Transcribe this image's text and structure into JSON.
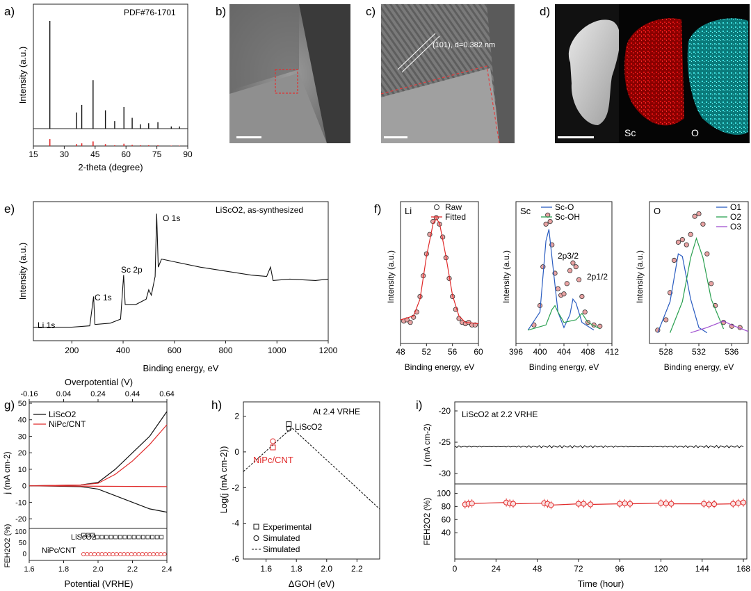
{
  "panel_labels": [
    "a)",
    "b)",
    "c)",
    "d)",
    "e)",
    "f)",
    "g)",
    "h)",
    "i)"
  ],
  "images": {
    "c_annotation": "(101), d=0.382 nm",
    "d_labels": [
      "Sc",
      "O"
    ]
  },
  "chart_data": [
    {
      "id": "a",
      "type": "bar",
      "xlabel": "2-theta (degree)",
      "ylabel": "Intensity (a.u.)",
      "annotation": "PDF#76-1701",
      "xticks": [
        "15",
        "30",
        "45",
        "60",
        "75",
        "90"
      ],
      "xlim": [
        15,
        90
      ],
      "series": [
        {
          "values": [
            [
              23,
              100
            ],
            [
              36,
              15
            ],
            [
              38.5,
              22
            ],
            [
              44,
              45
            ],
            [
              50,
              17
            ],
            [
              54.5,
              7
            ],
            [
              59,
              20
            ],
            [
              63,
              10
            ],
            [
              67,
              4
            ],
            [
              71,
              5
            ],
            [
              75.5,
              6
            ],
            [
              82,
              2
            ],
            [
              86,
              2
            ]
          ]
        },
        {
          "values": [
            [
              23,
              18
            ],
            [
              36,
              5
            ],
            [
              38.5,
              7
            ],
            [
              44,
              12
            ],
            [
              50,
              5
            ],
            [
              54.5,
              2
            ],
            [
              59,
              6
            ],
            [
              63,
              3
            ],
            [
              67,
              2
            ],
            [
              71,
              2
            ],
            [
              75.5,
              2
            ],
            [
              82,
              1
            ],
            [
              86,
              1
            ]
          ]
        }
      ]
    },
    {
      "id": "e",
      "type": "line",
      "xlabel": "Binding energy, eV",
      "ylabel": "Intensity (a.u.)",
      "annotation": "LiScO2, as-synthesized",
      "peak_labels": [
        "Li 1s",
        "C 1s",
        "Sc 2p",
        "O 1s"
      ],
      "xticks": [
        "200",
        "400",
        "600",
        "800",
        "1000",
        "1200"
      ],
      "xlim": [
        50,
        1200
      ],
      "series": [
        {
          "points": [
            [
              50,
              7
            ],
            [
              100,
              7
            ],
            [
              200,
              7
            ],
            [
              270,
              8
            ],
            [
              285,
              30
            ],
            [
              290,
              9
            ],
            [
              350,
              10
            ],
            [
              390,
              13
            ],
            [
              402,
              46
            ],
            [
              408,
              24
            ],
            [
              450,
              24
            ],
            [
              490,
              28
            ],
            [
              500,
              35
            ],
            [
              510,
              31
            ],
            [
              525,
              45
            ],
            [
              531,
              92
            ],
            [
              537,
              52
            ],
            [
              550,
              58
            ],
            [
              600,
              56
            ],
            [
              700,
              52
            ],
            [
              800,
              49
            ],
            [
              900,
              46
            ],
            [
              960,
              45
            ],
            [
              975,
              52
            ],
            [
              985,
              42
            ],
            [
              1050,
              43
            ],
            [
              1150,
              42
            ],
            [
              1200,
              43
            ]
          ]
        }
      ]
    },
    {
      "id": "f-Li",
      "type": "scatter",
      "xlabel": "Binding energy, eV",
      "ylabel": "Intensity (a.u.)",
      "element_label": "Li",
      "legend": [
        "Raw",
        "Fitted"
      ],
      "xticks": [
        "48",
        "52",
        "56",
        "60"
      ],
      "xlim": [
        48,
        60
      ],
      "series": [
        {
          "name": "Raw",
          "points": [
            [
              48.5,
              13
            ],
            [
              49,
              14
            ],
            [
              49.5,
              12
            ],
            [
              50,
              16
            ],
            [
              50.5,
              20
            ],
            [
              51,
              32
            ],
            [
              51.5,
              48
            ],
            [
              52,
              65
            ],
            [
              52.5,
              80
            ],
            [
              53,
              90
            ],
            [
              53.5,
              93
            ],
            [
              54,
              88
            ],
            [
              54.5,
              78
            ],
            [
              55,
              62
            ],
            [
              55.5,
              46
            ],
            [
              56,
              32
            ],
            [
              56.5,
              22
            ],
            [
              57,
              15
            ],
            [
              57.5,
              12
            ],
            [
              58,
              11
            ],
            [
              58.5,
              12
            ],
            [
              59,
              10
            ],
            [
              59.5,
              10
            ]
          ]
        },
        {
          "name": "Fitted",
          "points": [
            [
              48,
              14
            ],
            [
              50,
              17
            ],
            [
              51,
              30
            ],
            [
              52,
              63
            ],
            [
              53,
              88
            ],
            [
              53.5,
              92
            ],
            [
              54,
              89
            ],
            [
              55,
              63
            ],
            [
              56,
              33
            ],
            [
              57,
              17
            ],
            [
              58,
              12
            ],
            [
              60,
              11
            ]
          ]
        }
      ]
    },
    {
      "id": "f-Sc",
      "type": "scatter",
      "xlabel": "Binding energy, eV",
      "ylabel": "Intensity (a.u.)",
      "element_label": "Sc",
      "legend": [
        "Sc-O",
        "Sc-OH"
      ],
      "peak_labels": [
        "2p3/2",
        "2p1/2"
      ],
      "xticks": [
        "396",
        "400",
        "404",
        "408",
        "412"
      ],
      "xlim": [
        396,
        412
      ],
      "series": [
        {
          "name": "Raw",
          "points": [
            [
              399,
              10
            ],
            [
              400,
              25
            ],
            [
              400.5,
              55
            ],
            [
              401,
              88
            ],
            [
              401.3,
              95
            ],
            [
              401.7,
              90
            ],
            [
              402,
              72
            ],
            [
              402.5,
              50
            ],
            [
              403,
              38
            ],
            [
              403.5,
              33
            ],
            [
              404,
              34
            ],
            [
              404.5,
              42
            ],
            [
              405,
              52
            ],
            [
              405.5,
              58
            ],
            [
              406,
              55
            ],
            [
              406.5,
              45
            ],
            [
              407,
              32
            ],
            [
              407.5,
              20
            ],
            [
              408,
              12
            ],
            [
              409,
              10
            ],
            [
              410,
              9
            ]
          ]
        },
        {
          "name": "Sc-O",
          "points": [
            [
              398,
              6
            ],
            [
              400,
              20
            ],
            [
              401,
              75
            ],
            [
              401.5,
              84
            ],
            [
              402,
              62
            ],
            [
              403,
              20
            ],
            [
              404,
              8
            ],
            [
              405,
              18
            ],
            [
              405.5,
              30
            ],
            [
              406,
              27
            ],
            [
              407,
              12
            ],
            [
              409,
              6
            ]
          ]
        },
        {
          "name": "Sc-OH",
          "points": [
            [
              398,
              6
            ],
            [
              401,
              10
            ],
            [
              402,
              22
            ],
            [
              402.5,
              25
            ],
            [
              403,
              20
            ],
            [
              404,
              12
            ],
            [
              406,
              14
            ],
            [
              407,
              19
            ],
            [
              408,
              12
            ],
            [
              410,
              7
            ]
          ]
        }
      ]
    },
    {
      "id": "f-O",
      "type": "scatter",
      "xlabel": "Binding energy, eV",
      "ylabel": "Intensity (a.u.)",
      "element_label": "O",
      "legend": [
        "O1",
        "O2",
        "O3"
      ],
      "xticks": [
        "528",
        "532",
        "536"
      ],
      "xlim": [
        526,
        538
      ],
      "series": [
        {
          "name": "Raw",
          "points": [
            [
              527,
              6
            ],
            [
              528,
              14
            ],
            [
              528.5,
              35
            ],
            [
              529,
              60
            ],
            [
              529.5,
              74
            ],
            [
              530,
              76
            ],
            [
              530.5,
              72
            ],
            [
              531,
              80
            ],
            [
              531.5,
              94
            ],
            [
              532,
              96
            ],
            [
              532.5,
              88
            ],
            [
              533,
              65
            ],
            [
              533.5,
              42
            ],
            [
              534,
              25
            ],
            [
              535,
              12
            ],
            [
              536,
              9
            ],
            [
              537,
              8
            ]
          ]
        },
        {
          "name": "O1",
          "points": [
            [
              527,
              4
            ],
            [
              528.5,
              28
            ],
            [
              529.5,
              65
            ],
            [
              530,
              63
            ],
            [
              531,
              30
            ],
            [
              532,
              8
            ],
            [
              533,
              4
            ]
          ]
        },
        {
          "name": "O2",
          "points": [
            [
              528.5,
              4
            ],
            [
              530,
              28
            ],
            [
              531,
              62
            ],
            [
              531.7,
              77
            ],
            [
              532.5,
              62
            ],
            [
              533.5,
              30
            ],
            [
              535,
              7
            ]
          ]
        },
        {
          "name": "O3",
          "points": [
            [
              531,
              4
            ],
            [
              533,
              8
            ],
            [
              535,
              13
            ],
            [
              536,
              10
            ],
            [
              538,
              5
            ]
          ]
        }
      ]
    },
    {
      "id": "g",
      "type": "line",
      "xlabel": "Potential (VRHE)",
      "x2label": "Overpotential (V)",
      "ylabel": "j (mA cm-2)",
      "y2label": "FEH2O2 (%)",
      "legend": [
        "LiScO2",
        "NiPc/CNT"
      ],
      "xlim": [
        1.6,
        2.4
      ],
      "ylim": [
        -25,
        50
      ],
      "series": [
        {
          "name": "LiScO2",
          "points": [
            [
              1.6,
              0
            ],
            [
              1.9,
              0.5
            ],
            [
              2.0,
              2
            ],
            [
              2.1,
              10
            ],
            [
              2.2,
              20
            ],
            [
              2.3,
              30
            ],
            [
              2.4,
              45
            ]
          ]
        },
        {
          "name": "NiPc/CNT",
          "points": [
            [
              1.6,
              0
            ],
            [
              1.9,
              0.5
            ],
            [
              2.0,
              1.5
            ],
            [
              2.1,
              7
            ],
            [
              2.2,
              15
            ],
            [
              2.3,
              25
            ],
            [
              2.4,
              37
            ]
          ]
        }
      ]
    },
    {
      "id": "h",
      "type": "line",
      "xlabel": "ΔGOH (eV)",
      "ylabel": "Log(j (mA cm-2))",
      "annotation": "At 2.4 VRHE",
      "point_labels": [
        "LiScO2",
        "NiPc/CNT"
      ],
      "legend": [
        "Experimental",
        "Simulated",
        "Simulated"
      ],
      "xlim": [
        1.45,
        2.35
      ],
      "ylim": [
        -6,
        2.8
      ],
      "series": [
        {
          "name": "Simulated",
          "points": [
            [
              1.45,
              -1.1
            ],
            [
              1.77,
              1.35
            ],
            [
              2.35,
              -3.2
            ]
          ]
        }
      ]
    },
    {
      "id": "i",
      "type": "line",
      "xlabel": "Time (hour)",
      "ylabel": "j (mA cm-2)",
      "y2label": "FEH2O2 (%)",
      "annotation": "LiScO2 at 2.2 VRHE",
      "xlim": [
        0,
        170
      ],
      "series": [
        {
          "name": "j",
          "points": [
            [
              0,
              -25.7
            ],
            [
              168,
              -25.7
            ]
          ]
        },
        {
          "name": "FE",
          "points": [
            [
              6,
              83
            ],
            [
              8,
              84
            ],
            [
              10,
              84.5
            ],
            [
              30,
              86
            ],
            [
              32,
              84.5
            ],
            [
              34,
              84
            ],
            [
              52,
              85
            ],
            [
              54,
              84
            ],
            [
              56,
              82
            ],
            [
              72,
              84
            ],
            [
              75,
              84
            ],
            [
              79,
              83
            ],
            [
              96,
              84
            ],
            [
              99,
              84.5
            ],
            [
              102,
              84
            ],
            [
              120,
              85
            ],
            [
              123,
              84.5
            ],
            [
              126,
              84
            ],
            [
              145,
              84
            ],
            [
              148,
              83
            ],
            [
              151,
              83.5
            ],
            [
              162,
              84
            ],
            [
              165,
              85
            ],
            [
              168,
              86
            ]
          ]
        }
      ]
    }
  ]
}
